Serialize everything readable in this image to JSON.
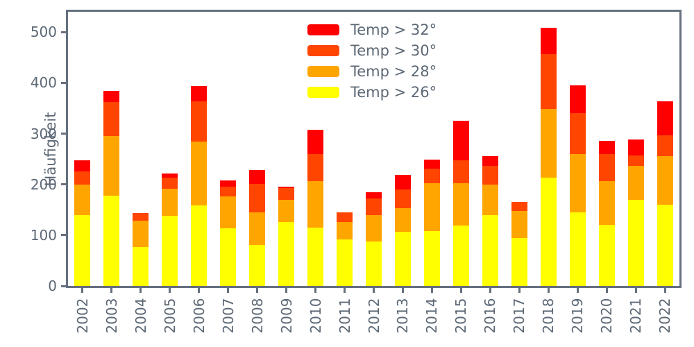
{
  "chart_data": {
    "type": "bar",
    "stacked": true,
    "title": "",
    "xlabel": "",
    "ylabel": "Häufigkeit",
    "categories": [
      "2002",
      "2003",
      "2004",
      "2005",
      "2006",
      "2007",
      "2008",
      "2009",
      "2010",
      "2011",
      "2012",
      "2013",
      "2014",
      "2015",
      "2016",
      "2017",
      "2018",
      "2019",
      "2020",
      "2021",
      "2022"
    ],
    "series": [
      {
        "name": "Temp > 26°",
        "color": "#ffff00",
        "values": [
          140,
          178,
          77,
          138,
          159,
          113,
          80,
          126,
          115,
          91,
          87,
          106,
          108,
          119,
          140,
          95,
          213,
          145,
          120,
          170,
          160
        ]
      },
      {
        "name": "Temp > 28°",
        "color": "#ffa500",
        "values": [
          60,
          117,
          51,
          54,
          125,
          64,
          65,
          43,
          91,
          35,
          53,
          47,
          94,
          84,
          59,
          53,
          135,
          115,
          87,
          67,
          96
        ]
      },
      {
        "name": "Temp > 30°",
        "color": "#ff4500",
        "values": [
          25,
          67,
          15,
          21,
          80,
          18,
          56,
          24,
          54,
          19,
          32,
          37,
          29,
          45,
          37,
          17,
          108,
          80,
          53,
          20,
          41
        ]
      },
      {
        "name": "Temp > 32°",
        "color": "#ff0000",
        "values": [
          23,
          22,
          0,
          8,
          30,
          13,
          27,
          3,
          47,
          0,
          12,
          29,
          18,
          78,
          20,
          0,
          52,
          55,
          26,
          32,
          66
        ]
      }
    ],
    "totals": [
      248,
      384,
      143,
      221,
      394,
      208,
      228,
      196,
      307,
      145,
      184,
      219,
      249,
      326,
      256,
      165,
      508,
      395,
      286,
      289,
      363
    ],
    "legend": {
      "position": "upper center inside plot",
      "entries": [
        {
          "label": "Temp > 32°",
          "color": "#ff0000"
        },
        {
          "label": "Temp > 30°",
          "color": "#ff4500"
        },
        {
          "label": "Temp > 28°",
          "color": "#ffa500"
        },
        {
          "label": "Temp > 26°",
          "color": "#ffff00"
        }
      ]
    },
    "y_ticks": [
      0,
      100,
      200,
      300,
      400,
      500
    ],
    "ylim": [
      0,
      540
    ],
    "grid": false,
    "axis_text_color": "#5c6875",
    "spine_color": "#66707f"
  }
}
